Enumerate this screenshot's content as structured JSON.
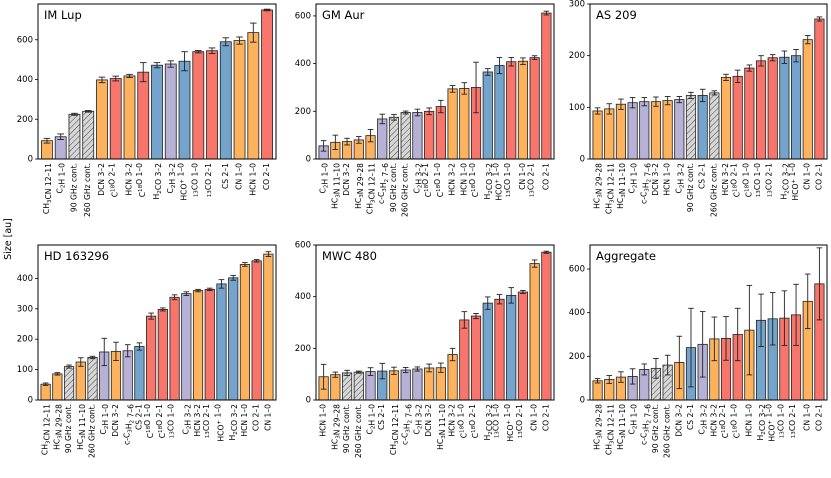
{
  "colors": {
    "orange": "#fdb25e",
    "purple": "#b7b1d6",
    "blue": "#74a4cc",
    "red": "#f7756b",
    "hatch_fill": "#d7d7d7"
  },
  "chart_data": {
    "type": "bar",
    "ylabel": "Size [au]",
    "panels": [
      {
        "title": "IM Lup",
        "ylim": [
          0,
          780
        ],
        "yticks": [
          0,
          200,
          400,
          600
        ],
        "bars": [
          {
            "label": "CH3CN 12–11",
            "value": 92,
            "err": 12,
            "color": "orange"
          },
          {
            "label": "C2H 1–0",
            "value": 112,
            "err": 14,
            "color": "purple"
          },
          {
            "label": "90 GHz cont.",
            "value": 225,
            "err": 5,
            "color": "hatch"
          },
          {
            "label": "260 GHz cont.",
            "value": 240,
            "err": 4,
            "color": "hatch"
          },
          {
            "label": "DCN 3–2",
            "value": 398,
            "err": 14,
            "color": "orange"
          },
          {
            "label": "C18O 2–1",
            "value": 405,
            "err": 12,
            "color": "red"
          },
          {
            "label": "HCN 3–2",
            "value": 418,
            "err": 8,
            "color": "orange"
          },
          {
            "label": "C18O 1–0",
            "value": 437,
            "err": 48,
            "color": "red"
          },
          {
            "label": "H2CO 3–2",
            "value": 472,
            "err": 13,
            "color": "blue"
          },
          {
            "label": "C2H 3–2",
            "value": 478,
            "err": 16,
            "color": "purple"
          },
          {
            "label": "HCO+ 1–0",
            "value": 492,
            "err": 48,
            "color": "blue"
          },
          {
            "label": "13CO 1–0",
            "value": 540,
            "err": 6,
            "color": "red"
          },
          {
            "label": "13CO 2–1",
            "value": 545,
            "err": 14,
            "color": "red"
          },
          {
            "label": "CS 2–1",
            "value": 590,
            "err": 20,
            "color": "blue"
          },
          {
            "label": "CN 1–0",
            "value": 596,
            "err": 18,
            "color": "orange"
          },
          {
            "label": "HCN 1–0",
            "value": 636,
            "err": 48,
            "color": "orange"
          },
          {
            "label": "CO 2–1",
            "value": 750,
            "err": 4,
            "color": "red"
          }
        ]
      },
      {
        "title": "GM Aur",
        "ylim": [
          0,
          650
        ],
        "yticks": [
          0,
          200,
          400,
          600
        ],
        "bars": [
          {
            "label": "C2H 1–0",
            "value": 55,
            "err": 22,
            "color": "purple"
          },
          {
            "label": "HC3N 11–10",
            "value": 70,
            "err": 30,
            "color": "orange"
          },
          {
            "label": "DCN 3–2",
            "value": 73,
            "err": 14,
            "color": "orange"
          },
          {
            "label": "HC3N 29–28",
            "value": 80,
            "err": 14,
            "color": "orange"
          },
          {
            "label": "CH3CN 12–11",
            "value": 98,
            "err": 26,
            "color": "orange"
          },
          {
            "label": "c-C3H2 7–6",
            "value": 168,
            "err": 20,
            "color": "purple"
          },
          {
            "label": "90 GHz cont.",
            "value": 175,
            "err": 12,
            "color": "hatch"
          },
          {
            "label": "260 GHz cont.",
            "value": 195,
            "err": 6,
            "color": "hatch"
          },
          {
            "label": "C2H 3–2",
            "value": 195,
            "err": 14,
            "color": "purple"
          },
          {
            "label": "C18O 2–1",
            "value": 200,
            "err": 14,
            "color": "red"
          },
          {
            "label": "C18O 1–0",
            "value": 220,
            "err": 26,
            "color": "red"
          },
          {
            "label": "HCN 3–2",
            "value": 294,
            "err": 14,
            "color": "orange"
          },
          {
            "label": "HCN 1–0",
            "value": 296,
            "err": 24,
            "color": "orange"
          },
          {
            "label": "C18O 1–0",
            "value": 300,
            "err": 106,
            "color": "red"
          },
          {
            "label": "H2CO 3–2",
            "value": 365,
            "err": 14,
            "color": "blue"
          },
          {
            "label": "HCO+ 1–0",
            "value": 392,
            "err": 34,
            "color": "blue"
          },
          {
            "label": "13CO 1–0",
            "value": 408,
            "err": 18,
            "color": "red"
          },
          {
            "label": "CN 1–0",
            "value": 410,
            "err": 14,
            "color": "orange"
          },
          {
            "label": "13CO 2–1",
            "value": 425,
            "err": 8,
            "color": "red"
          },
          {
            "label": "CO 2–1",
            "value": 612,
            "err": 8,
            "color": "red"
          }
        ]
      },
      {
        "title": "AS 209",
        "ylim": [
          0,
          300
        ],
        "yticks": [
          0,
          100,
          200,
          300
        ],
        "bars": [
          {
            "label": "HC3N 29–28",
            "value": 93,
            "err": 6,
            "color": "orange"
          },
          {
            "label": "CH3CN 12–11",
            "value": 97,
            "err": 10,
            "color": "orange"
          },
          {
            "label": "HC3N 11–10",
            "value": 106,
            "err": 10,
            "color": "orange"
          },
          {
            "label": "C2H 1–0",
            "value": 109,
            "err": 10,
            "color": "purple"
          },
          {
            "label": "c-C3H2 7–6",
            "value": 111,
            "err": 8,
            "color": "purple"
          },
          {
            "label": "DCN 3–2",
            "value": 111,
            "err": 9,
            "color": "orange"
          },
          {
            "label": "HCN 1–0",
            "value": 113,
            "err": 8,
            "color": "orange"
          },
          {
            "label": "C2H 3–2",
            "value": 115,
            "err": 6,
            "color": "purple"
          },
          {
            "label": "90 GHz cont.",
            "value": 123,
            "err": 6,
            "color": "hatch"
          },
          {
            "label": "CS 2–1",
            "value": 123,
            "err": 12,
            "color": "blue"
          },
          {
            "label": "260 GHz cont.",
            "value": 128,
            "err": 4,
            "color": "hatch"
          },
          {
            "label": "HCN 3–2",
            "value": 158,
            "err": 6,
            "color": "orange"
          },
          {
            "label": "C18O 2–1",
            "value": 160,
            "err": 12,
            "color": "red"
          },
          {
            "label": "C18O 1–0",
            "value": 176,
            "err": 6,
            "color": "red"
          },
          {
            "label": "13CO 1–0",
            "value": 190,
            "err": 10,
            "color": "red"
          },
          {
            "label": "13CO 2–1",
            "value": 196,
            "err": 6,
            "color": "red"
          },
          {
            "label": "H2CO 3–2",
            "value": 197,
            "err": 12,
            "color": "blue"
          },
          {
            "label": "HCO+ 1–0",
            "value": 200,
            "err": 12,
            "color": "blue"
          },
          {
            "label": "CN 1–0",
            "value": 231,
            "err": 8,
            "color": "orange"
          },
          {
            "label": "CO 2–1",
            "value": 271,
            "err": 4,
            "color": "red"
          }
        ]
      },
      {
        "title": "HD 163296",
        "ylim": [
          0,
          510
        ],
        "yticks": [
          0,
          100,
          200,
          300,
          400
        ],
        "bars": [
          {
            "label": "CH3CN 12–11",
            "value": 52,
            "err": 4,
            "color": "orange"
          },
          {
            "label": "HC3N 29–28",
            "value": 86,
            "err": 4,
            "color": "orange"
          },
          {
            "label": "90 GHz cont.",
            "value": 110,
            "err": 5,
            "color": "hatch"
          },
          {
            "label": "HC3N 11–10",
            "value": 125,
            "err": 14,
            "color": "orange"
          },
          {
            "label": "260 GHz cont.",
            "value": 140,
            "err": 4,
            "color": "hatch"
          },
          {
            "label": "C2H 1–0",
            "value": 158,
            "err": 45,
            "color": "purple"
          },
          {
            "label": "DCN 3–2",
            "value": 160,
            "err": 30,
            "color": "orange"
          },
          {
            "label": "c-C3H2 7–6",
            "value": 162,
            "err": 20,
            "color": "purple"
          },
          {
            "label": "CS 2–1",
            "value": 176,
            "err": 12,
            "color": "blue"
          },
          {
            "label": "C18O 1–0",
            "value": 276,
            "err": 10,
            "color": "red"
          },
          {
            "label": "C18O 2–1",
            "value": 298,
            "err": 5,
            "color": "red"
          },
          {
            "label": "13CO 1–0",
            "value": 338,
            "err": 8,
            "color": "red"
          },
          {
            "label": "C2H 3–2",
            "value": 350,
            "err": 6,
            "color": "purple"
          },
          {
            "label": "HCN 3–2",
            "value": 360,
            "err": 4,
            "color": "orange"
          },
          {
            "label": "13CO 2–1",
            "value": 364,
            "err": 4,
            "color": "red"
          },
          {
            "label": "HCO+ 1–0",
            "value": 382,
            "err": 14,
            "color": "blue"
          },
          {
            "label": "H2CO 3–2",
            "value": 402,
            "err": 8,
            "color": "blue"
          },
          {
            "label": "HCN 1–0",
            "value": 446,
            "err": 6,
            "color": "orange"
          },
          {
            "label": "CO 2–1",
            "value": 458,
            "err": 4,
            "color": "red"
          },
          {
            "label": "CN 1–0",
            "value": 480,
            "err": 8,
            "color": "orange"
          }
        ]
      },
      {
        "title": "MWC 480",
        "ylim": [
          0,
          600
        ],
        "yticks": [
          0,
          200,
          400,
          600
        ],
        "bars": [
          {
            "label": "HCN 1–0",
            "value": 90,
            "err": 48,
            "color": "orange"
          },
          {
            "label": "HC3N 29–28",
            "value": 98,
            "err": 10,
            "color": "orange"
          },
          {
            "label": "90 GHz cont.",
            "value": 105,
            "err": 10,
            "color": "hatch"
          },
          {
            "label": "260 GHz cont.",
            "value": 108,
            "err": 4,
            "color": "hatch"
          },
          {
            "label": "C2H 1–0",
            "value": 110,
            "err": 15,
            "color": "purple"
          },
          {
            "label": "CS 2–1",
            "value": 112,
            "err": 30,
            "color": "blue"
          },
          {
            "label": "CH3CN 12–11",
            "value": 113,
            "err": 14,
            "color": "orange"
          },
          {
            "label": "c-C3H2 7–6",
            "value": 116,
            "err": 10,
            "color": "purple"
          },
          {
            "label": "C2H 3–2",
            "value": 120,
            "err": 8,
            "color": "purple"
          },
          {
            "label": "DCN 3–2",
            "value": 124,
            "err": 15,
            "color": "orange"
          },
          {
            "label": "HC3N 11–10",
            "value": 125,
            "err": 18,
            "color": "orange"
          },
          {
            "label": "HCN 3–2",
            "value": 176,
            "err": 24,
            "color": "orange"
          },
          {
            "label": "C18O 1–0",
            "value": 310,
            "err": 32,
            "color": "red"
          },
          {
            "label": "C18O 2–1",
            "value": 325,
            "err": 10,
            "color": "red"
          },
          {
            "label": "H2CO 3–2",
            "value": 375,
            "err": 24,
            "color": "blue"
          },
          {
            "label": "13CO 1–0",
            "value": 390,
            "err": 18,
            "color": "red"
          },
          {
            "label": "HCO+ 1–0",
            "value": 405,
            "err": 30,
            "color": "blue"
          },
          {
            "label": "13CO 2–1",
            "value": 418,
            "err": 6,
            "color": "red"
          },
          {
            "label": "CN 1–0",
            "value": 528,
            "err": 14,
            "color": "orange"
          },
          {
            "label": "CO 2–1",
            "value": 572,
            "err": 4,
            "color": "red"
          }
        ]
      },
      {
        "title": "Aggregate",
        "ylim": [
          0,
          710
        ],
        "yticks": [
          0,
          200,
          400,
          600
        ],
        "bars": [
          {
            "label": "HC3N 29–28",
            "value": 88,
            "err": 10,
            "color": "orange"
          },
          {
            "label": "CH3CN 12–11",
            "value": 94,
            "err": 18,
            "color": "orange"
          },
          {
            "label": "HC3N 11–10",
            "value": 105,
            "err": 24,
            "color": "orange"
          },
          {
            "label": "C2H 1–0",
            "value": 108,
            "err": 35,
            "color": "purple"
          },
          {
            "label": "c-C3H2 7–6",
            "value": 140,
            "err": 25,
            "color": "purple"
          },
          {
            "label": "90 GHz cont.",
            "value": 145,
            "err": 45,
            "color": "hatch"
          },
          {
            "label": "260 GHz cont.",
            "value": 160,
            "err": 45,
            "color": "hatch"
          },
          {
            "label": "DCN 3–2",
            "value": 172,
            "err": 120,
            "color": "orange"
          },
          {
            "label": "CS 2–1",
            "value": 240,
            "err": 180,
            "color": "blue"
          },
          {
            "label": "C2H 3–2",
            "value": 255,
            "err": 150,
            "color": "purple"
          },
          {
            "label": "HCN 3–2",
            "value": 280,
            "err": 100,
            "color": "orange"
          },
          {
            "label": "C18O 2–1",
            "value": 282,
            "err": 100,
            "color": "red"
          },
          {
            "label": "C18O 1–0",
            "value": 300,
            "err": 120,
            "color": "red"
          },
          {
            "label": "HCN 1–0",
            "value": 320,
            "err": 205,
            "color": "orange"
          },
          {
            "label": "H2CO 3–2",
            "value": 365,
            "err": 120,
            "color": "blue"
          },
          {
            "label": "HCO+ 1–0",
            "value": 372,
            "err": 120,
            "color": "blue"
          },
          {
            "label": "13CO 1–0",
            "value": 375,
            "err": 125,
            "color": "red"
          },
          {
            "label": "13CO 2–1",
            "value": 390,
            "err": 140,
            "color": "red"
          },
          {
            "label": "CN 1–0",
            "value": 452,
            "err": 125,
            "color": "orange"
          },
          {
            "label": "CO 2–1",
            "value": 532,
            "err": 165,
            "color": "red"
          }
        ]
      }
    ]
  }
}
